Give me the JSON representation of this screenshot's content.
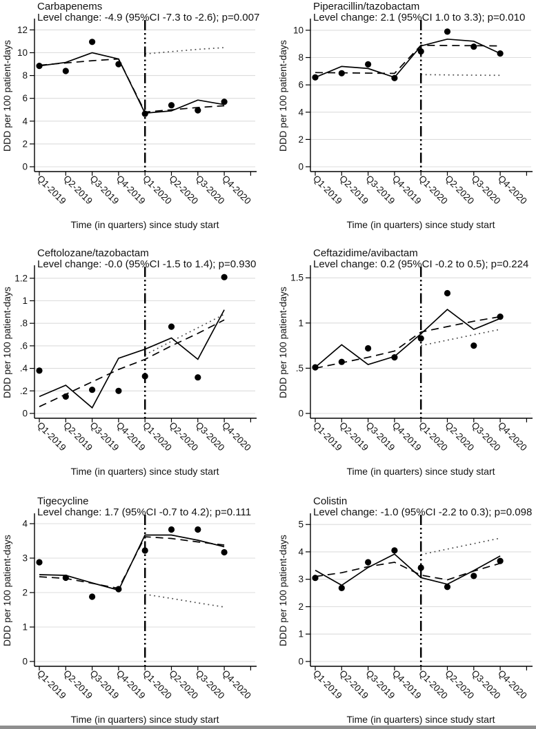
{
  "figure": {
    "background": "#ffffff",
    "line_color": "#000000",
    "grid_color": "#dcdcdc",
    "xlabel": "Time (in quarters) since study start",
    "ylabel": "DDD per 100 patient-days"
  },
  "chart_data": [
    {
      "type": "line",
      "title": "Carbapenems",
      "subtitle": "Level change: -4.9 (95%CI -7.3 to -2.6); p=0.007",
      "xlabel": "Time (in quarters) since study start",
      "ylabel": "DDD per 100 patient-days",
      "categories": [
        "Q1-2019",
        "Q2-2019",
        "Q3-2019",
        "Q4-2019",
        "Q1-2020",
        "Q2-2020",
        "Q3-2020",
        "Q4-2020"
      ],
      "ylim": [
        0,
        12.45
      ],
      "yticks": {
        "values": [
          0,
          2,
          4,
          6,
          8,
          10,
          12
        ],
        "labels": [
          "0",
          "2",
          "4",
          "6",
          "8",
          "10",
          "12"
        ]
      },
      "grid": true,
      "intervention": {
        "at_category": "Q1-2020",
        "index": 4,
        "line_style": "dash-dot-dot"
      },
      "series": [
        {
          "name": "observed",
          "style": "points",
          "values": [
            8.85,
            8.4,
            10.95,
            9.0,
            4.65,
            5.4,
            4.95,
            5.7
          ]
        },
        {
          "name": "model-fit",
          "style": "solid",
          "values": [
            8.85,
            9.15,
            10.0,
            9.45,
            4.7,
            4.9,
            5.85,
            5.45
          ]
        },
        {
          "name": "segmented-trend",
          "style": "dashed",
          "values": [
            8.9,
            9.1,
            9.3,
            9.45,
            4.8,
            5.0,
            5.2,
            5.35
          ]
        },
        {
          "name": "counterfactual",
          "style": "dotted",
          "values": [
            null,
            null,
            null,
            null,
            9.9,
            10.1,
            10.3,
            10.45
          ]
        }
      ]
    },
    {
      "type": "line",
      "title": "Piperacillin/tazobactam",
      "subtitle": "Level change: 2.1 (95%CI 1.0 to 3.3); p=0.010",
      "xlabel": "Time (in quarters) since study start",
      "ylabel": "DDD per 100 patient-days",
      "categories": [
        "Q1-2019",
        "Q2-2019",
        "Q3-2019",
        "Q4-2019",
        "Q1-2020",
        "Q2-2020",
        "Q3-2020",
        "Q4-2020"
      ],
      "ylim": [
        0,
        10.4
      ],
      "yticks": {
        "values": [
          0,
          2,
          4,
          6,
          8,
          10
        ],
        "labels": [
          "0",
          "2",
          "4",
          "6",
          "8",
          "10"
        ]
      },
      "grid": true,
      "intervention": {
        "at_category": "Q1-2020",
        "index": 4,
        "line_style": "dash-dot-dot"
      },
      "series": [
        {
          "name": "observed",
          "style": "points",
          "values": [
            6.55,
            6.85,
            7.5,
            6.5,
            8.45,
            9.9,
            8.8,
            8.3
          ]
        },
        {
          "name": "model-fit",
          "style": "solid",
          "values": [
            6.55,
            7.35,
            7.2,
            6.55,
            8.85,
            9.35,
            9.2,
            8.3
          ]
        },
        {
          "name": "segmented-trend",
          "style": "dashed",
          "values": [
            6.9,
            6.88,
            6.86,
            6.84,
            8.9,
            8.88,
            8.87,
            8.85
          ]
        },
        {
          "name": "counterfactual",
          "style": "dotted",
          "values": [
            null,
            null,
            null,
            null,
            6.75,
            6.73,
            6.71,
            6.7
          ]
        }
      ]
    },
    {
      "type": "line",
      "title": "Ceftolozane/tazobactam",
      "subtitle": "Level change: -0.0 (95%CI -1.5 to 1.4); p=0.930",
      "xlabel": "Time (in quarters) since study start",
      "ylabel": "DDD per 100 patient-days",
      "categories": [
        "Q1-2019",
        "Q2-2019",
        "Q3-2019",
        "Q4-2019",
        "Q1-2020",
        "Q2-2020",
        "Q3-2020",
        "Q4-2020"
      ],
      "ylim": [
        0,
        1.26
      ],
      "yticks": {
        "values": [
          0,
          0.2,
          0.4,
          0.6,
          0.8,
          1,
          1.2
        ],
        "labels": [
          "0",
          ".2",
          ".4",
          ".6",
          ".8",
          "1",
          "1.2"
        ]
      },
      "grid": true,
      "intervention": {
        "at_category": "Q1-2020",
        "index": 4,
        "line_style": "dash-dot-dot"
      },
      "series": [
        {
          "name": "observed",
          "style": "points",
          "values": [
            0.38,
            0.15,
            0.21,
            0.2,
            0.33,
            0.77,
            0.32,
            1.21
          ]
        },
        {
          "name": "model-fit",
          "style": "solid",
          "values": [
            0.15,
            0.25,
            0.05,
            0.49,
            0.57,
            0.67,
            0.48,
            0.92
          ]
        },
        {
          "name": "segmented-trend",
          "style": "dashed",
          "values": [
            0.06,
            0.17,
            0.28,
            0.39,
            0.48,
            0.6,
            0.71,
            0.83
          ]
        },
        {
          "name": "counterfactual",
          "style": "dotted",
          "values": [
            null,
            null,
            null,
            null,
            0.52,
            0.64,
            0.76,
            0.88
          ]
        }
      ]
    },
    {
      "type": "line",
      "title": "Ceftazidime/avibactam",
      "subtitle": "Level change: 0.2 (95%CI -0.2 to 0.5); p=0.224",
      "xlabel": "Time (in quarters) since study start",
      "ylabel": "DDD per 100 patient-days",
      "categories": [
        "Q1-2019",
        "Q2-2019",
        "Q3-2019",
        "Q4-2019",
        "Q1-2020",
        "Q2-2020",
        "Q3-2020",
        "Q4-2020"
      ],
      "ylim": [
        0,
        1.57
      ],
      "yticks": {
        "values": [
          0,
          0.5,
          1,
          1.5
        ],
        "labels": [
          "0",
          ".5",
          "1",
          "1.5"
        ]
      },
      "grid": true,
      "intervention": {
        "at_category": "Q1-2020",
        "index": 4,
        "line_style": "dash-dot-dot"
      },
      "series": [
        {
          "name": "observed",
          "style": "points",
          "values": [
            0.51,
            0.57,
            0.72,
            0.62,
            0.83,
            1.33,
            0.75,
            1.07
          ]
        },
        {
          "name": "model-fit",
          "style": "solid",
          "values": [
            0.51,
            0.76,
            0.54,
            0.63,
            0.88,
            1.15,
            0.93,
            1.05
          ]
        },
        {
          "name": "segmented-trend",
          "style": "dashed",
          "values": [
            0.5,
            0.56,
            0.62,
            0.69,
            0.9,
            0.96,
            1.02,
            1.07
          ]
        },
        {
          "name": "counterfactual",
          "style": "dotted",
          "values": [
            null,
            null,
            null,
            null,
            0.75,
            0.81,
            0.87,
            0.93
          ]
        }
      ]
    },
    {
      "type": "line",
      "title": "Tigecycline",
      "subtitle": "Level change: 1.7 (95%CI -0.7 to 4.2); p=0.111",
      "xlabel": "Time (in quarters) since study start",
      "ylabel": "DDD per 100 patient-days",
      "categories": [
        "Q1-2019",
        "Q2-2019",
        "Q3-2019",
        "Q4-2019",
        "Q1-2020",
        "Q2-2020",
        "Q3-2020",
        "Q4-2020"
      ],
      "ylim": [
        0,
        4.12
      ],
      "yticks": {
        "values": [
          0,
          1,
          2,
          3,
          4
        ],
        "labels": [
          "0",
          "1",
          "2",
          "3",
          "4"
        ]
      },
      "grid": true,
      "intervention": {
        "at_category": "Q1-2020",
        "index": 4,
        "line_style": "dash-dot-dot"
      },
      "series": [
        {
          "name": "observed",
          "style": "points",
          "values": [
            2.88,
            2.43,
            1.88,
            2.1,
            3.22,
            3.83,
            3.83,
            3.17
          ]
        },
        {
          "name": "model-fit",
          "style": "solid",
          "values": [
            2.52,
            2.5,
            2.28,
            2.07,
            3.67,
            3.67,
            3.52,
            3.33
          ]
        },
        {
          "name": "segmented-trend",
          "style": "dashed",
          "values": [
            2.46,
            2.41,
            2.27,
            2.12,
            3.62,
            3.57,
            3.47,
            3.38
          ]
        },
        {
          "name": "counterfactual",
          "style": "dotted",
          "values": [
            null,
            null,
            null,
            null,
            1.95,
            1.83,
            1.7,
            1.58
          ]
        }
      ]
    },
    {
      "type": "line",
      "title": "Colistin",
      "subtitle": "Level change: -1.0 (95%CI -2.2 to 0.3); p=0.098",
      "xlabel": "Time (in quarters) since study start",
      "ylabel": "DDD per 100 patient-days",
      "categories": [
        "Q1-2019",
        "Q2-2019",
        "Q3-2019",
        "Q4-2019",
        "Q1-2020",
        "Q2-2020",
        "Q3-2020",
        "Q4-2020"
      ],
      "ylim": [
        0,
        5.18
      ],
      "yticks": {
        "values": [
          0,
          1,
          2,
          3,
          4,
          5
        ],
        "labels": [
          "0",
          "1",
          "2",
          "3",
          "4",
          "5"
        ]
      },
      "grid": true,
      "intervention": {
        "at_category": "Q1-2020",
        "index": 4,
        "line_style": "dash-dot-dot"
      },
      "series": [
        {
          "name": "observed",
          "style": "points",
          "values": [
            3.05,
            2.68,
            3.62,
            4.05,
            3.42,
            2.72,
            3.12,
            3.67
          ]
        },
        {
          "name": "model-fit",
          "style": "solid",
          "values": [
            3.33,
            2.78,
            3.43,
            3.92,
            3.06,
            2.82,
            3.32,
            3.85
          ]
        },
        {
          "name": "segmented-trend",
          "style": "dashed",
          "values": [
            3.1,
            3.24,
            3.46,
            3.62,
            3.15,
            2.98,
            3.3,
            3.58
          ]
        },
        {
          "name": "counterfactual",
          "style": "dotted",
          "values": [
            null,
            null,
            null,
            null,
            3.9,
            4.1,
            4.3,
            4.5
          ]
        }
      ]
    }
  ]
}
